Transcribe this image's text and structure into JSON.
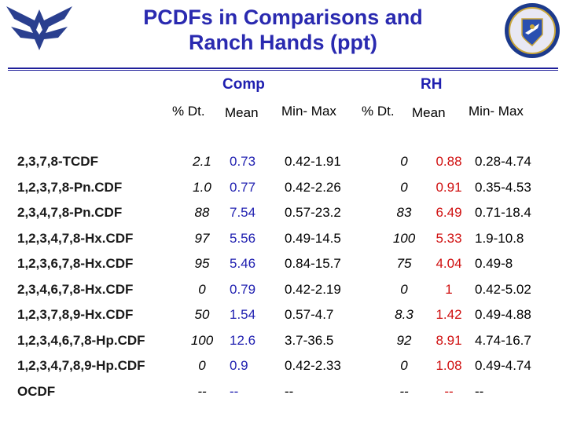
{
  "title_line1": "PCDFs in Comparisons and",
  "title_line2": "Ranch Hands (ppt)",
  "groups": {
    "comp": "Comp",
    "rh": "RH"
  },
  "headers": {
    "dt": "% Dt.",
    "mean": "Mean",
    "minmax": "Min- Max",
    "rh_dt": "% Dt.",
    "rh_mean": "Mean",
    "rh_minmax": "Min- Max"
  },
  "colors": {
    "title": "#2a2ab0",
    "comp_mean": "#1f1fb0",
    "rh_mean": "#d01010"
  },
  "rows": [
    {
      "name": "2,3,7,8-TCDF",
      "dt": "2.1",
      "mean": "0.73",
      "minmax": "0.42-1.91",
      "rh_dt": "0",
      "rh_mean": "0.88",
      "rh_minmax": "0.28-4.74"
    },
    {
      "name": "1,2,3,7,8-Pn.CDF",
      "dt": "1.0",
      "mean": "0.77",
      "minmax": "0.42-2.26",
      "rh_dt": "0",
      "rh_mean": "0.91",
      "rh_minmax": "0.35-4.53"
    },
    {
      "name": "2,3,4,7,8-Pn.CDF",
      "dt": "88",
      "mean": "7.54",
      "minmax": "0.57-23.2",
      "rh_dt": "83",
      "rh_mean": "6.49",
      "rh_minmax": "0.71-18.4"
    },
    {
      "name": "1,2,3,4,7,8-Hx.CDF",
      "dt": "97",
      "mean": "5.56",
      "minmax": "0.49-14.5",
      "rh_dt": "100",
      "rh_mean": "5.33",
      "rh_minmax": "1.9-10.8"
    },
    {
      "name": "1,2,3,6,7,8-Hx.CDF",
      "dt": "95",
      "mean": "5.46",
      "minmax": "0.84-15.7",
      "rh_dt": "75",
      "rh_mean": "4.04",
      "rh_minmax": "0.49-8"
    },
    {
      "name": "2,3,4,6,7,8-Hx.CDF",
      "dt": "0",
      "mean": "0.79",
      "minmax": "0.42-2.19",
      "rh_dt": "0",
      "rh_mean": "1",
      "rh_minmax": "0.42-5.02"
    },
    {
      "name": "1,2,3,7,8,9-Hx.CDF",
      "dt": "50",
      "mean": "1.54",
      "minmax": "0.57-4.7",
      "rh_dt": "8.3",
      "rh_mean": "1.42",
      "rh_minmax": "0.49-4.88"
    },
    {
      "name": "1,2,3,4,6,7,8-Hp.CDF",
      "dt": "100",
      "mean": "12.6",
      "minmax": "3.7-36.5",
      "rh_dt": "92",
      "rh_mean": "8.91",
      "rh_minmax": "4.74-16.7"
    },
    {
      "name": "1,2,3,4,7,8,9-Hp.CDF",
      "dt": "0",
      "mean": "0.9",
      "minmax": "0.42-2.33",
      "rh_dt": "0",
      "rh_mean": "1.08",
      "rh_minmax": "0.49-4.74"
    },
    {
      "name": "OCDF",
      "dt": "--",
      "mean": "--",
      "minmax": "--",
      "rh_dt": "--",
      "rh_mean": "--",
      "rh_minmax": "--"
    }
  ]
}
